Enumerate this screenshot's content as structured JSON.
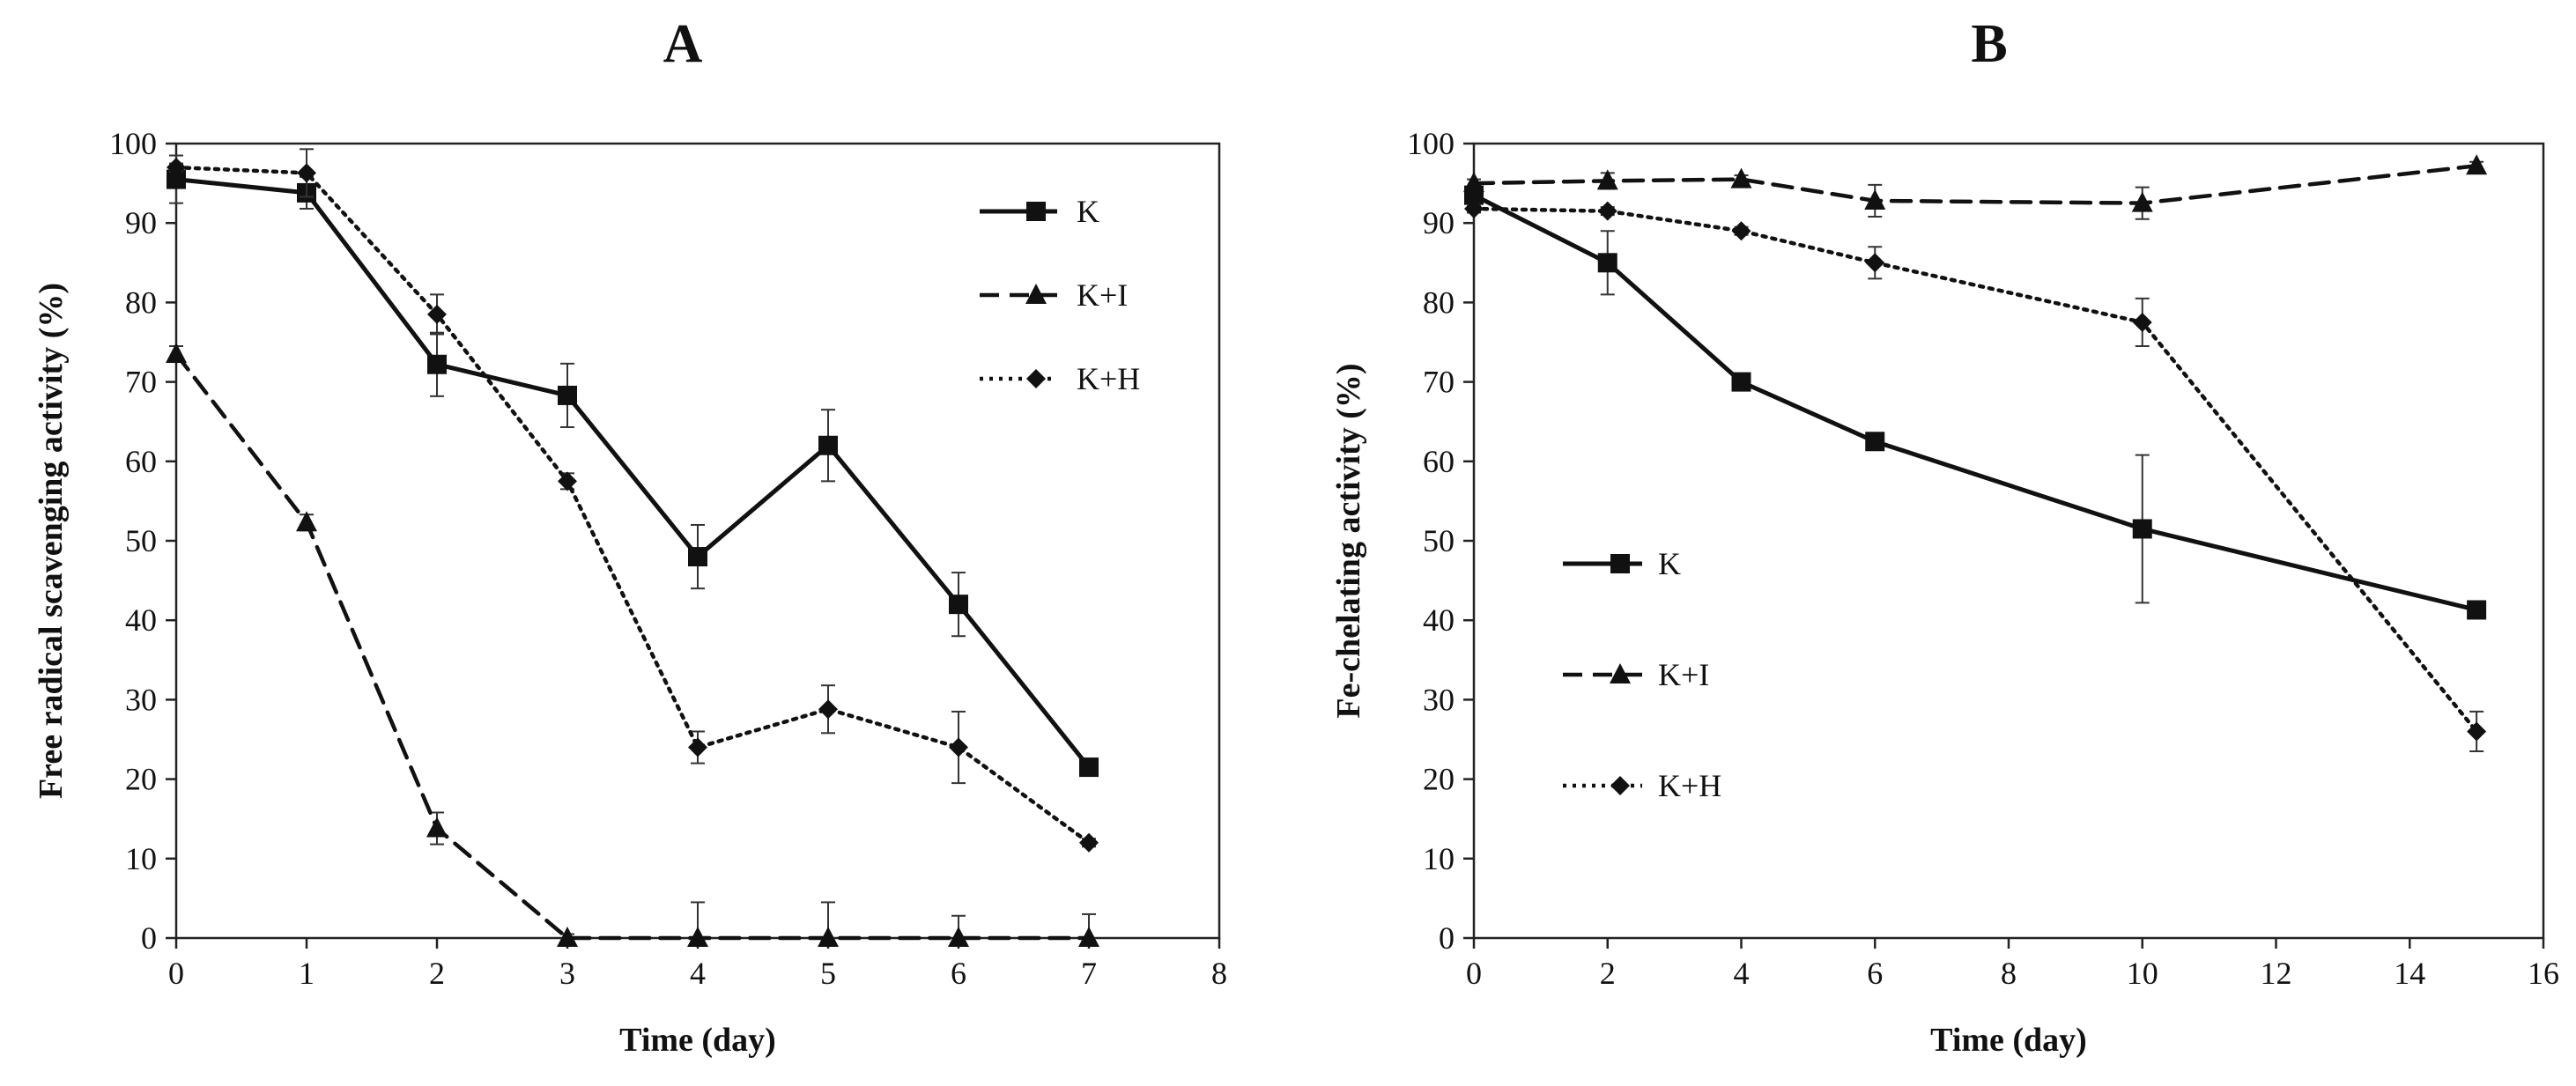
{
  "chart_data": [
    {
      "type": "line",
      "panel": "A",
      "title": "A",
      "xlabel": "Time (day)",
      "ylabel": "Free radical scavenging activity (%)",
      "xlim": [
        0,
        8
      ],
      "ylim": [
        0,
        100
      ],
      "xticks": [
        0,
        1,
        2,
        3,
        4,
        5,
        6,
        7,
        8
      ],
      "yticks": [
        0,
        10,
        20,
        30,
        40,
        50,
        60,
        70,
        80,
        90,
        100
      ],
      "legend_position": "top-right",
      "series": [
        {
          "name": "K",
          "style": "solid",
          "marker": "square",
          "x": [
            0,
            1,
            2,
            3,
            4,
            5,
            6,
            7
          ],
          "values": [
            95.5,
            93.8,
            72.2,
            68.3,
            48.0,
            62.0,
            42.0,
            21.5
          ],
          "errors": [
            3.0,
            2.0,
            4.0,
            4.0,
            4.0,
            4.5,
            4.0,
            1.0
          ]
        },
        {
          "name": "K+I",
          "style": "dashed",
          "marker": "triangle",
          "x": [
            0,
            1,
            2,
            3,
            4,
            5,
            6,
            7
          ],
          "values": [
            73.5,
            52.3,
            13.8,
            0.0,
            0.0,
            0.0,
            0.0,
            0.0
          ],
          "errors": [
            1.0,
            1.0,
            2.0,
            0.5,
            4.5,
            4.5,
            2.8,
            3.0
          ]
        },
        {
          "name": "K+H",
          "style": "dotted",
          "marker": "diamond",
          "x": [
            0,
            1,
            2,
            3,
            4,
            5,
            6,
            7
          ],
          "values": [
            97.0,
            96.3,
            78.5,
            57.5,
            24.0,
            28.8,
            24.0,
            12.0
          ],
          "errors": [
            0.5,
            3.0,
            2.5,
            1.0,
            2.0,
            3.0,
            4.5,
            0.5
          ]
        }
      ]
    },
    {
      "type": "line",
      "panel": "B",
      "title": "B",
      "xlabel": "Time (day)",
      "ylabel": "Fe-chelating activity (%)",
      "xlim": [
        0,
        16
      ],
      "ylim": [
        0,
        100
      ],
      "xticks": [
        0,
        2,
        4,
        6,
        8,
        10,
        12,
        14,
        16
      ],
      "yticks": [
        0,
        10,
        20,
        30,
        40,
        50,
        60,
        70,
        80,
        90,
        100
      ],
      "legend_position": "center-left",
      "series": [
        {
          "name": "K",
          "style": "solid",
          "marker": "square",
          "x": [
            0,
            2,
            4,
            6,
            10,
            15
          ],
          "values": [
            93.5,
            85.0,
            70.0,
            62.5,
            51.5,
            41.3
          ],
          "errors": [
            1.0,
            4.0,
            0.5,
            0.5,
            9.3,
            0.5
          ]
        },
        {
          "name": "K+I",
          "style": "dashed",
          "marker": "triangle",
          "x": [
            0,
            2,
            4,
            6,
            10,
            15
          ],
          "values": [
            95.0,
            95.3,
            95.5,
            92.8,
            92.5,
            97.2
          ],
          "errors": [
            0.5,
            1.0,
            0.5,
            2.0,
            2.0,
            0.5
          ]
        },
        {
          "name": "K+H",
          "style": "dotted",
          "marker": "diamond",
          "x": [
            0,
            2,
            4,
            6,
            10,
            15
          ],
          "values": [
            91.8,
            91.5,
            89.0,
            85.0,
            77.5,
            26.0
          ],
          "errors": [
            0.5,
            0.5,
            0.5,
            2.0,
            3.0,
            2.5
          ]
        }
      ]
    }
  ]
}
